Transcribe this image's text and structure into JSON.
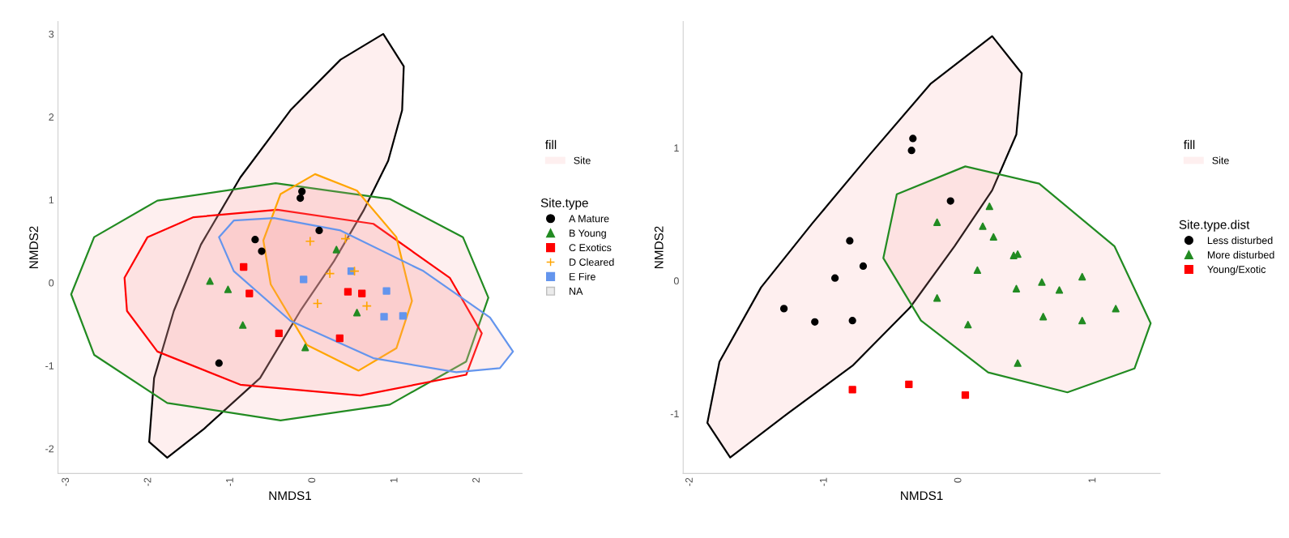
{
  "chart_data": [
    {
      "type": "scatter",
      "xlabel": "NMDS1",
      "ylabel": "NMDS2",
      "xlim": [
        -3.1,
        2.55
      ],
      "ylim": [
        -2.3,
        3.15
      ],
      "xticks": [
        -3,
        -2,
        -1,
        0,
        1,
        2
      ],
      "yticks": [
        -2,
        -1,
        0,
        1,
        2,
        3
      ],
      "legend": "right",
      "legend_title": "Site.type",
      "annotations": [
        "fill",
        "Site"
      ],
      "grid": false,
      "series": [
        {
          "type": "area",
          "color": "#000000",
          "x": [
            0.86,
            1.11,
            1.09,
            0.92,
            0.62,
            0.26,
            -0.15,
            -0.64,
            -1.32,
            -1.77,
            -1.99,
            -1.93,
            -1.69,
            -1.36,
            -0.88,
            -0.27,
            0.34
          ],
          "values": [
            3.0,
            2.61,
            2.08,
            1.47,
            0.87,
            0.26,
            -0.34,
            -1.15,
            -1.76,
            -2.11,
            -1.92,
            -1.15,
            -0.34,
            0.46,
            1.27,
            2.08,
            2.69
          ]
        },
        {
          "type": "area",
          "color": "#228b22",
          "x": [
            -2.94,
            -2.66,
            -1.89,
            -0.45,
            0.94,
            1.83,
            2.14,
            1.87,
            0.94,
            -0.39,
            -1.77,
            -2.66
          ],
          "values": [
            -0.14,
            0.55,
            0.99,
            1.2,
            1.01,
            0.55,
            -0.18,
            -0.95,
            -1.47,
            -1.66,
            -1.45,
            -0.87
          ]
        },
        {
          "type": "area",
          "color": "#ff0000",
          "x": [
            -2.29,
            -2.01,
            -1.45,
            -0.43,
            0.74,
            1.67,
            2.06,
            1.87,
            0.58,
            -0.88,
            -1.89,
            -2.26
          ],
          "values": [
            0.06,
            0.55,
            0.79,
            0.88,
            0.71,
            0.06,
            -0.61,
            -1.11,
            -1.36,
            -1.23,
            -0.83,
            -0.34
          ]
        },
        {
          "type": "area",
          "color": "#ffa500",
          "x": [
            0.03,
            0.54,
            1.02,
            1.21,
            1.02,
            0.56,
            -0.07,
            -0.51,
            -0.6,
            -0.39
          ],
          "values": [
            1.31,
            1.11,
            0.55,
            -0.22,
            -0.79,
            -1.06,
            -0.75,
            -0.02,
            0.51,
            1.07
          ]
        },
        {
          "type": "area",
          "color": "#6495ed",
          "x": [
            -1.14,
            -0.96,
            -0.47,
            0.34,
            1.35,
            2.16,
            2.44,
            2.28,
            1.75,
            0.74,
            -0.27,
            -0.96
          ],
          "values": [
            0.55,
            0.75,
            0.78,
            0.63,
            0.14,
            -0.42,
            -0.83,
            -1.03,
            -1.08,
            -0.91,
            -0.46,
            0.14
          ]
        },
        {
          "name": "A Mature",
          "color": "#000000",
          "marker": "circle",
          "x": [
            -0.13,
            -0.15,
            0.08,
            -0.7,
            -0.62,
            -1.14
          ],
          "values": [
            1.1,
            1.02,
            0.63,
            0.52,
            0.38,
            -0.97
          ]
        },
        {
          "name": "B Young",
          "color": "#228b22",
          "marker": "triangle",
          "x": [
            -1.25,
            -1.03,
            -0.85,
            -0.09,
            0.29,
            0.54
          ],
          "values": [
            0.02,
            -0.08,
            -0.51,
            -0.78,
            0.4,
            -0.36
          ]
        },
        {
          "name": "C Exotics",
          "color": "#ff0000",
          "marker": "square",
          "x": [
            -0.84,
            -0.77,
            -0.41,
            0.33,
            0.43,
            0.6
          ],
          "values": [
            0.19,
            -0.13,
            -0.61,
            -0.67,
            -0.11,
            -0.13
          ]
        },
        {
          "name": "D Cleared",
          "color": "#ffa500",
          "marker": "cross",
          "x": [
            -0.03,
            0.4,
            0.21,
            0.06,
            0.66,
            0.51
          ],
          "values": [
            0.5,
            0.53,
            0.11,
            -0.25,
            -0.28,
            0.14
          ]
        },
        {
          "name": "E Fire",
          "color": "#6495ed",
          "marker": "square",
          "x": [
            -0.11,
            0.47,
            0.9,
            0.87,
            1.1
          ],
          "values": [
            0.04,
            0.14,
            -0.1,
            -0.41,
            -0.4
          ]
        },
        {
          "name": "NA",
          "color": "#bebebe",
          "marker": "none"
        }
      ]
    },
    {
      "type": "scatter",
      "xlabel": "NMDS1",
      "ylabel": "NMDS2",
      "xlim": [
        -2.05,
        1.5
      ],
      "ylim": [
        -1.45,
        1.95
      ],
      "xticks": [
        -2,
        -1,
        0,
        1
      ],
      "yticks": [
        -1,
        0,
        1
      ],
      "legend": "right",
      "legend_title": "Site.type.dist",
      "annotations": [
        "fill",
        "Site"
      ],
      "grid": false,
      "series": [
        {
          "type": "area",
          "color": "#000000",
          "x": [
            0.25,
            0.47,
            0.43,
            0.25,
            -0.03,
            -0.36,
            -0.79,
            -1.3,
            -1.7,
            -1.87,
            -1.78,
            -1.47,
            -1.09,
            -0.66,
            -0.21
          ],
          "values": [
            1.84,
            1.56,
            1.1,
            0.68,
            0.26,
            -0.2,
            -0.64,
            -1.02,
            -1.33,
            -1.07,
            -0.61,
            -0.05,
            0.43,
            0.95,
            1.48
          ]
        },
        {
          "type": "area",
          "color": "#228b22",
          "x": [
            0.05,
            0.6,
            1.16,
            1.43,
            1.31,
            0.81,
            0.22,
            -0.28,
            -0.56,
            -0.46
          ],
          "values": [
            0.86,
            0.73,
            0.26,
            -0.32,
            -0.66,
            -0.84,
            -0.69,
            -0.3,
            0.17,
            0.65
          ]
        },
        {
          "name": "Less disturbed",
          "color": "#000000",
          "marker": "circle",
          "x": [
            -0.34,
            -0.35,
            -0.06,
            -0.81,
            -0.71,
            -0.92,
            -1.3,
            -1.07,
            -0.79
          ],
          "values": [
            1.07,
            0.98,
            0.6,
            0.3,
            0.11,
            0.02,
            -0.21,
            -0.31,
            -0.3
          ]
        },
        {
          "name": "More disturbed",
          "color": "#228b22",
          "marker": "triangle",
          "x": [
            0.23,
            -0.16,
            0.18,
            0.26,
            0.41,
            0.44,
            0.14,
            0.43,
            0.62,
            0.75,
            0.92,
            -0.16,
            0.07,
            0.63,
            0.92,
            1.17,
            0.44
          ],
          "values": [
            0.56,
            0.44,
            0.41,
            0.33,
            0.19,
            0.2,
            0.08,
            -0.06,
            -0.01,
            -0.07,
            0.03,
            -0.13,
            -0.33,
            -0.27,
            -0.3,
            -0.21,
            -0.62
          ]
        },
        {
          "name": "Young/Exotic",
          "color": "#ff0000",
          "marker": "square",
          "x": [
            -0.79,
            -0.37,
            0.05
          ],
          "values": [
            -0.82,
            -0.78,
            -0.86
          ]
        }
      ]
    }
  ]
}
